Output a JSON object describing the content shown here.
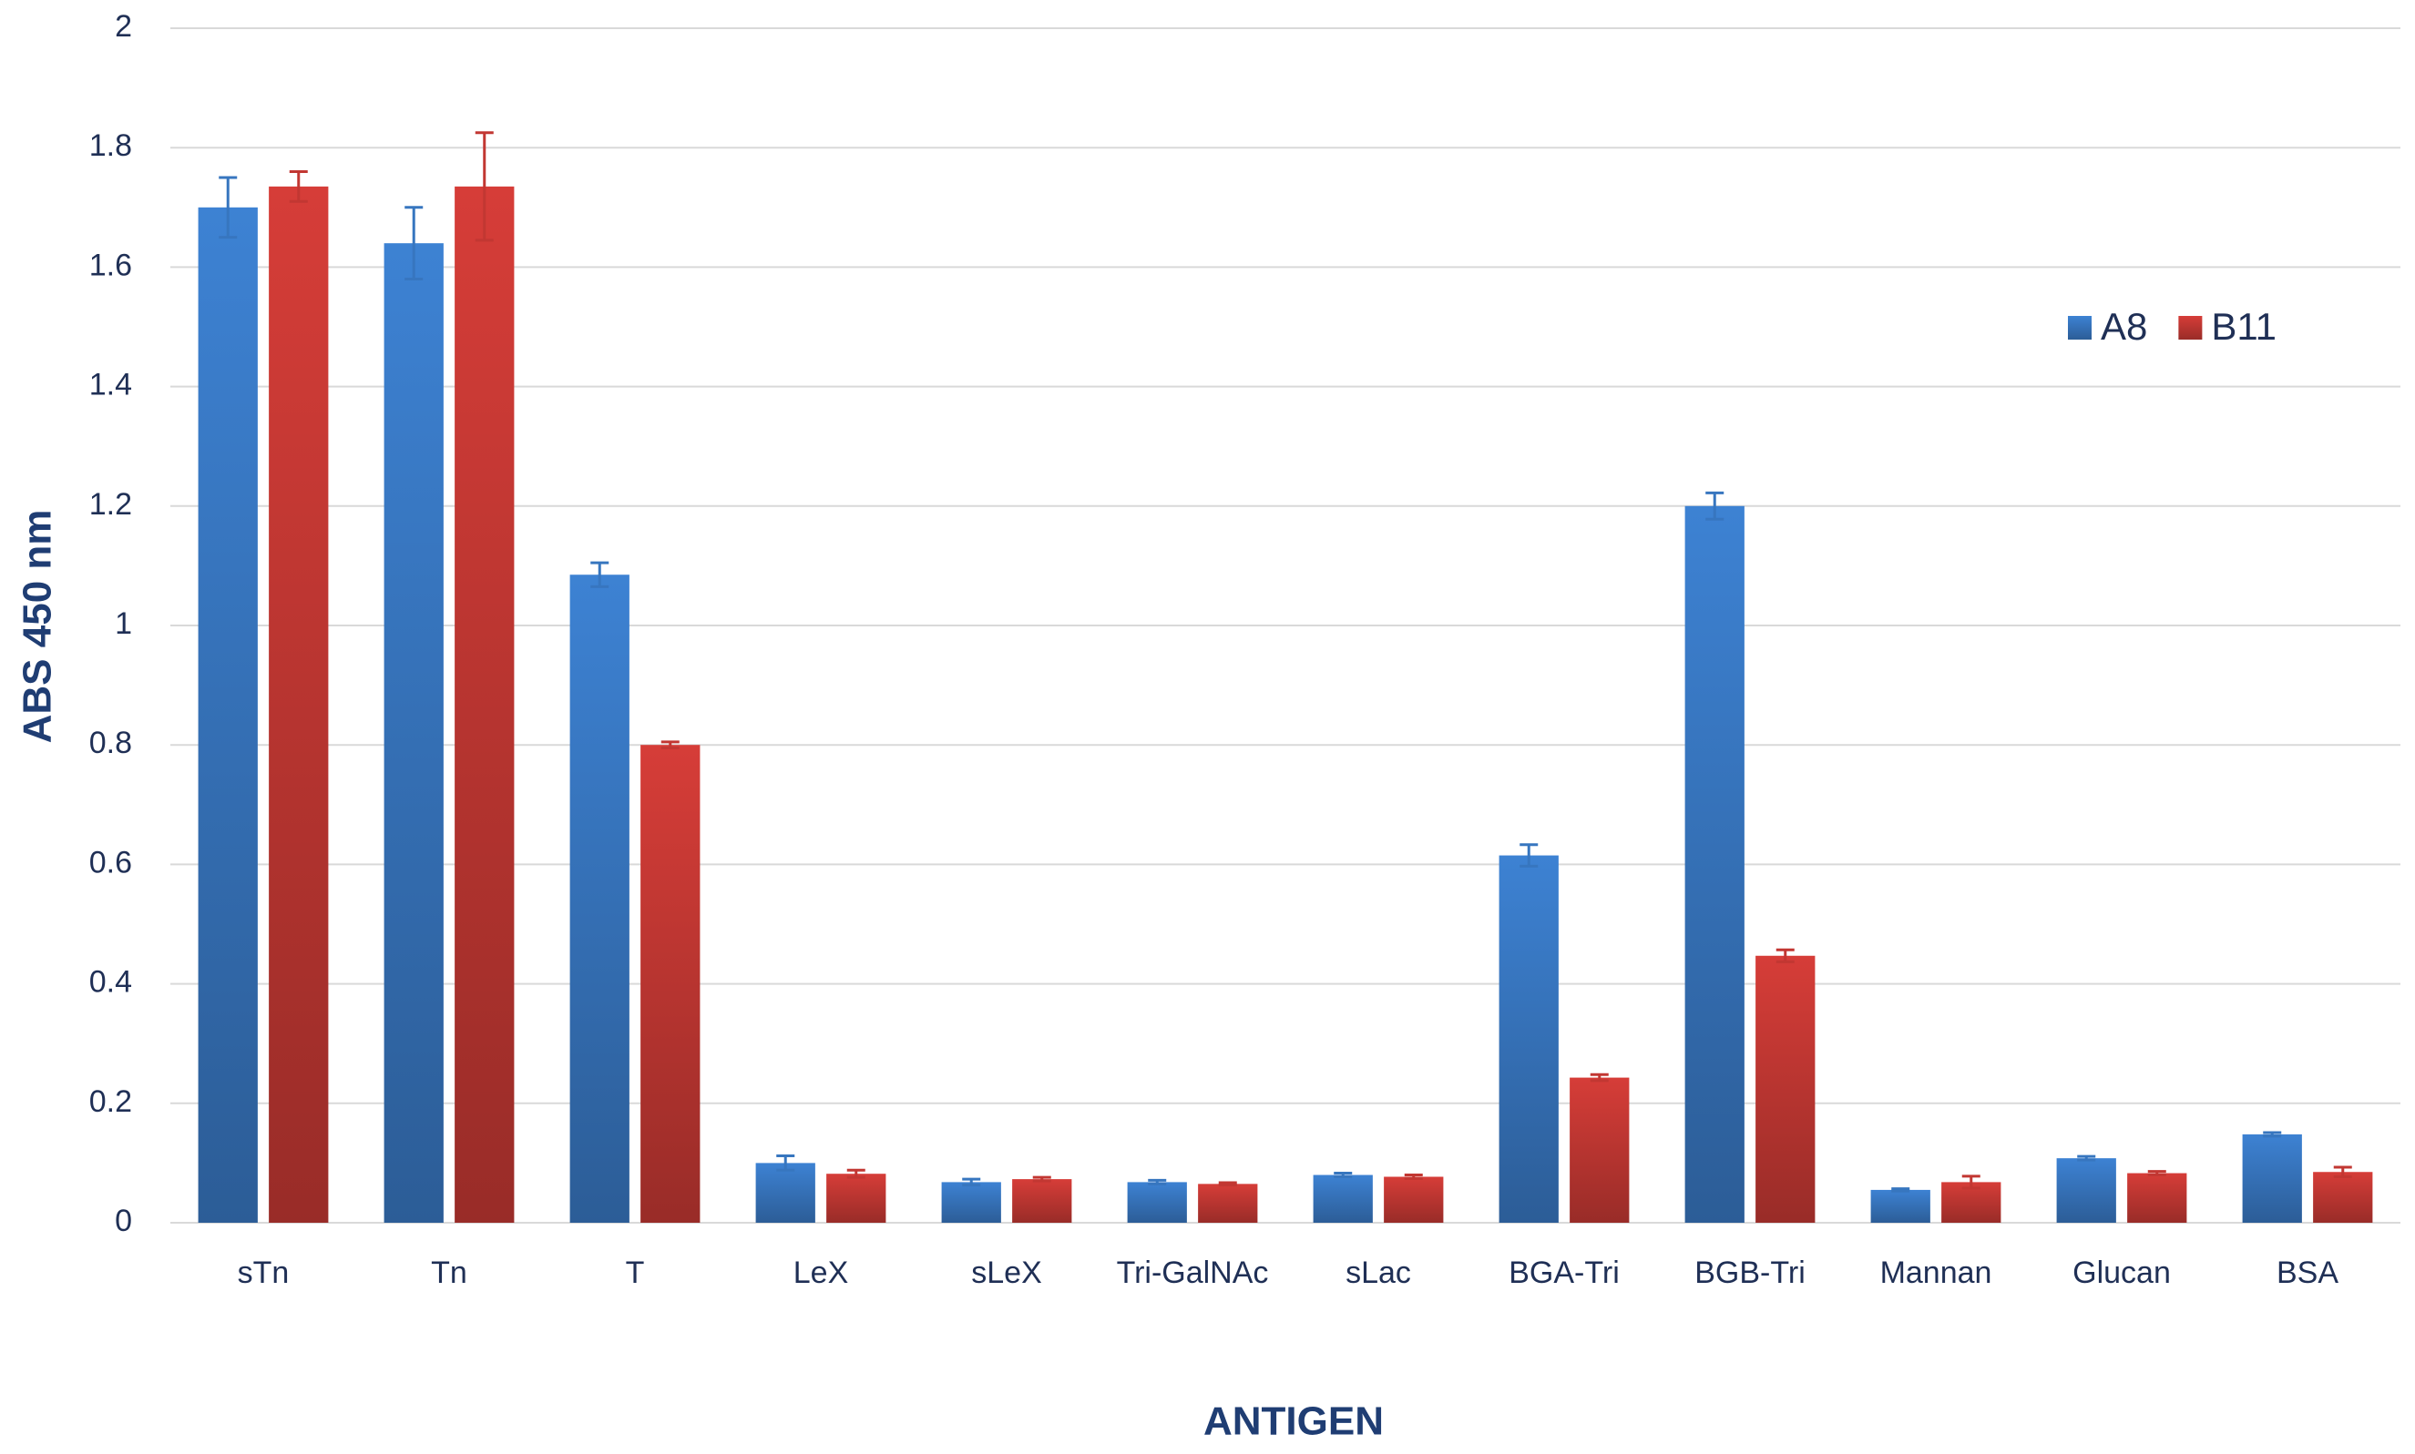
{
  "chart_data": {
    "type": "bar",
    "x_label": "ANTIGEN",
    "y_label": "ABS 450 nm",
    "categories": [
      "sTn",
      "Tn",
      "T",
      "LeX",
      "sLeX",
      "Tri-GalNAc",
      "sLac",
      "BGA-Tri",
      "BGB-Tri",
      "Mannan",
      "Glucan",
      "BSA"
    ],
    "series": [
      {
        "name": "A8",
        "color": "#3a7cc9",
        "values": [
          1.7,
          1.64,
          1.085,
          0.1,
          0.068,
          0.068,
          0.08,
          0.615,
          1.2,
          0.055,
          0.108,
          0.148
        ],
        "errors": [
          0.05,
          0.06,
          0.02,
          0.012,
          0.005,
          0.003,
          0.003,
          0.018,
          0.022,
          0.002,
          0.003,
          0.003
        ]
      },
      {
        "name": "B11",
        "color": "#cc3a35",
        "values": [
          1.735,
          1.735,
          0.8,
          0.082,
          0.073,
          0.065,
          0.077,
          0.243,
          0.447,
          0.068,
          0.083,
          0.085
        ],
        "errors": [
          0.025,
          0.09,
          0.005,
          0.006,
          0.003,
          0.002,
          0.003,
          0.005,
          0.01,
          0.01,
          0.003,
          0.008
        ]
      }
    ],
    "ylim": [
      0,
      2
    ],
    "yticks": [
      0,
      0.2,
      0.4,
      0.6,
      0.8,
      1,
      1.2,
      1.4,
      1.6,
      1.8,
      2
    ],
    "grid": true,
    "legend": "upper right"
  }
}
